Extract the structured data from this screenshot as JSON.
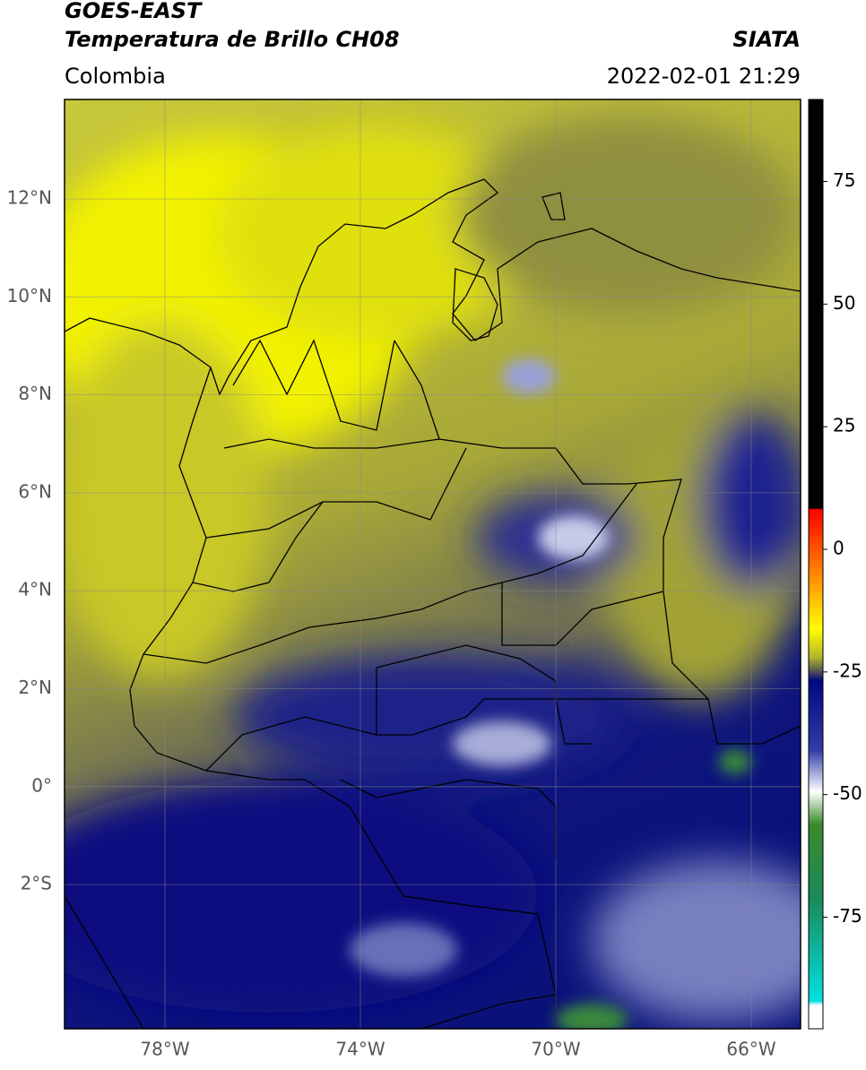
{
  "header": {
    "satellite": "GOES-EAST",
    "product": "Temperatura de Brillo CH08",
    "region": "Colombia",
    "source": "SIATA",
    "datetime": "2022-02-01 21:29"
  },
  "map": {
    "lat_ticks": [
      "12°N",
      "10°N",
      "8°N",
      "6°N",
      "4°N",
      "2°N",
      "0°",
      "2°S"
    ],
    "lon_ticks": [
      "78°W",
      "74°W",
      "70°W",
      "66°W"
    ]
  },
  "colorbar": {
    "ticks": [
      75,
      50,
      25,
      0,
      -25,
      -50,
      -75
    ]
  }
}
